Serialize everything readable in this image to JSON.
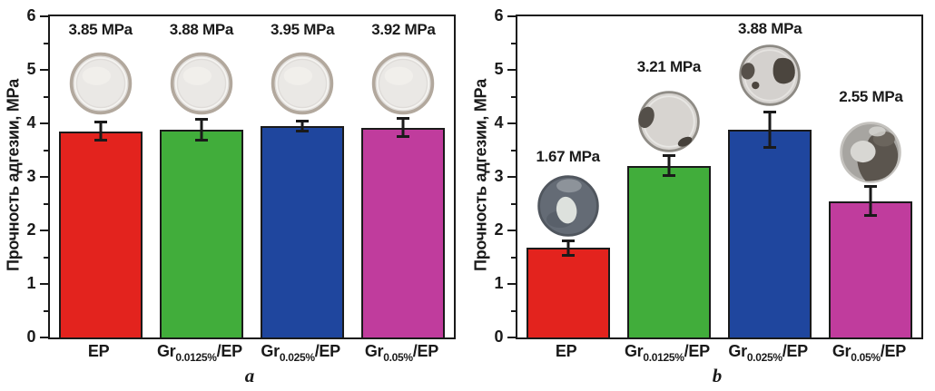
{
  "figure": {
    "background": "#ffffff",
    "axis_color": "#1a1a1a",
    "text_color": "#1a1a1a"
  },
  "chart_data": [
    {
      "type": "bar",
      "panel_label": "a",
      "ylabel": "Прочность адгезии, MPa",
      "xlabel": "",
      "ylim": [
        0,
        6
      ],
      "yticks": [
        0,
        1,
        2,
        3,
        4,
        5,
        6
      ],
      "minor_tick_step": 0.5,
      "grid": false,
      "legend": "none",
      "categories": [
        "EP",
        "Gr0.0125%/EP",
        "Gr0.025%/EP",
        "Gr0.05%/EP"
      ],
      "category_parts": [
        {
          "prefix": "EP",
          "sub": "",
          "suffix": ""
        },
        {
          "prefix": "Gr",
          "sub": "0.0125%",
          "suffix": "/EP"
        },
        {
          "prefix": "Gr",
          "sub": "0.025%",
          "suffix": "/EP"
        },
        {
          "prefix": "Gr",
          "sub": "0.05%",
          "suffix": "/EP"
        }
      ],
      "values": [
        3.85,
        3.88,
        3.95,
        3.92
      ],
      "errors": [
        0.18,
        0.2,
        0.1,
        0.18
      ],
      "bar_labels": [
        "3.85 MPa",
        "3.88 MPa",
        "3.95 MPa",
        "3.92 MPa"
      ],
      "bar_label_y": [
        5.75,
        5.75,
        5.75,
        5.75
      ],
      "bar_colors": [
        "#e3231e",
        "#41ad3b",
        "#1f469e",
        "#c03c9d"
      ],
      "sample_discs": [
        {
          "style": "epoxy-clear",
          "y": 4.75
        },
        {
          "style": "epoxy-clear",
          "y": 4.75
        },
        {
          "style": "epoxy-clear",
          "y": 4.75
        },
        {
          "style": "epoxy-clear",
          "y": 4.75
        }
      ]
    },
    {
      "type": "bar",
      "panel_label": "b",
      "ylabel": "Прочность адгезии, MPa",
      "xlabel": "",
      "ylim": [
        0,
        6
      ],
      "yticks": [
        0,
        1,
        2,
        3,
        4,
        5,
        6
      ],
      "minor_tick_step": 0.5,
      "grid": false,
      "legend": "none",
      "categories": [
        "EP",
        "Gr0.0125%/EP",
        "Gr0.025%/EP",
        "Gr0.05%/EP"
      ],
      "category_parts": [
        {
          "prefix": "EP",
          "sub": "",
          "suffix": ""
        },
        {
          "prefix": "Gr",
          "sub": "0.0125%",
          "suffix": "/EP"
        },
        {
          "prefix": "Gr",
          "sub": "0.025%",
          "suffix": "/EP"
        },
        {
          "prefix": "Gr",
          "sub": "0.05%",
          "suffix": "/EP"
        }
      ],
      "values": [
        1.67,
        3.21,
        3.88,
        2.55
      ],
      "errors": [
        0.15,
        0.2,
        0.34,
        0.28
      ],
      "bar_labels": [
        "1.67 MPa",
        "3.21 MPa",
        "3.88 MPa",
        "2.55 MPa"
      ],
      "bar_label_y": [
        3.38,
        5.05,
        5.76,
        4.5
      ],
      "bar_colors": [
        "#e3231e",
        "#41ad3b",
        "#1f469e",
        "#c03c9d"
      ],
      "sample_discs": [
        {
          "style": "dark-light-blob",
          "y": 2.46
        },
        {
          "style": "light-dark-left",
          "y": 4.03
        },
        {
          "style": "light-dark-both",
          "y": 4.9
        },
        {
          "style": "dark-mottled",
          "y": 3.46
        }
      ]
    }
  ],
  "disc_palette": {
    "epoxy-clear": {
      "base": "#dfdcd9",
      "edge": "#b2a89d",
      "inner": "#eae8e5",
      "ring": "#f5f4f1"
    },
    "dark-light-blob": {
      "base": "#646b75",
      "edge": "#50565e",
      "patch": "#8d939a",
      "shade": "#59606a",
      "blob": "#dde1dd"
    },
    "light-dark-left": {
      "base": "#d7d4d0",
      "edge": "#8f8c86",
      "ring": "#f0efec",
      "dark1": "#544f49",
      "dark2": "#46413b"
    },
    "light-dark-both": {
      "base": "#d4d1ce",
      "edge": "#8d8a84",
      "ring": "#f0efec",
      "dark1": "#4b453e",
      "dark2": "#56504a"
    },
    "dark-mottled": {
      "base": "#a7a5a1",
      "edge": "#c4c2be",
      "dark1": "#5b554e",
      "dark2": "#6b655d",
      "light": "#d8d7d3"
    }
  }
}
